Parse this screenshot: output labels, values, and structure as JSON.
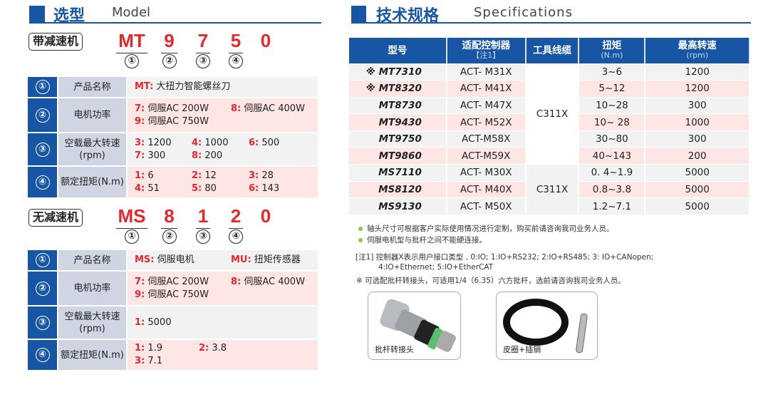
{
  "model": {
    "title": "选型",
    "subtitle": "Model",
    "geared": {
      "tag": "带减速机",
      "code": [
        "MT",
        "9",
        "7",
        "5",
        "0"
      ],
      "markers": [
        "①",
        "②",
        "③",
        "④"
      ],
      "rows": [
        {
          "num": "①",
          "label": "产品名称",
          "options": [
            {
              "k": "MT:",
              "v": " 大扭力智能螺丝刀"
            }
          ]
        },
        {
          "num": "②",
          "label": "电机功率",
          "options": [
            {
              "k": "7:",
              "v": " 伺服AC 200W"
            },
            {
              "k": "8:",
              "v": " 伺服AC 400W"
            },
            {
              "k": "9:",
              "v": " 伺服AC 750W"
            }
          ]
        },
        {
          "num": "③",
          "label": "空载最大转速(rpm)",
          "options": [
            {
              "k": "3:",
              "v": " 1200"
            },
            {
              "k": "4:",
              "v": " 1000"
            },
            {
              "k": "6:",
              "v": " 500"
            },
            {
              "k": "7:",
              "v": " 300"
            },
            {
              "k": "8:",
              "v": " 200"
            }
          ]
        },
        {
          "num": "④",
          "label": "额定扭矩(N.m)",
          "options": [
            {
              "k": "1:",
              "v": " 6"
            },
            {
              "k": "2:",
              "v": " 12"
            },
            {
              "k": "3:",
              "v": " 28"
            },
            {
              "k": "4:",
              "v": " 51"
            },
            {
              "k": "5:",
              "v": " 80"
            },
            {
              "k": "6:",
              "v": " 143"
            }
          ]
        }
      ]
    },
    "direct": {
      "tag": "无减速机",
      "code": [
        "MS",
        "8",
        "1",
        "2",
        "0"
      ],
      "markers": [
        "①",
        "②",
        "③",
        "④"
      ],
      "rows": [
        {
          "num": "①",
          "label": "产品名称",
          "options": [
            {
              "k": "MS:",
              "v": " 伺服电机"
            },
            {
              "k": "MU:",
              "v": " 扭矩传感器"
            }
          ]
        },
        {
          "num": "②",
          "label": "电机功率",
          "options": [
            {
              "k": "7:",
              "v": " 伺服AC 200W"
            },
            {
              "k": "8:",
              "v": " 伺服AC 400W"
            },
            {
              "k": "9:",
              "v": " 伺服AC 750W"
            }
          ]
        },
        {
          "num": "③",
          "label": "空载最大转速(rpm)",
          "options": [
            {
              "k": "1:",
              "v": " 5000"
            }
          ]
        },
        {
          "num": "④",
          "label": "额定扭矩(N.m)",
          "options": [
            {
              "k": "1:",
              "v": " 1.9"
            },
            {
              "k": "2:",
              "v": " 3.8"
            },
            {
              "k": "3:",
              "v": " 7.1"
            }
          ]
        }
      ]
    }
  },
  "specs": {
    "title": "技术规格",
    "subtitle": "Specifications",
    "headers": [
      {
        "t": "型号",
        "s": ""
      },
      {
        "t": "适配控制器",
        "s": "【注1】"
      },
      {
        "t": "工具线缆",
        "s": ""
      },
      {
        "t": "扭矩",
        "s": "(N.m)"
      },
      {
        "t": "最高转速",
        "s": "(rpm)"
      }
    ],
    "rows": [
      [
        "※ MT7310",
        "ACT- M31X",
        "3~6",
        "1200"
      ],
      [
        "※ MT8320",
        "ACT- M41X",
        "5~12",
        "1200"
      ],
      [
        "MT8730",
        "ACT- M47X",
        "10~28",
        "300"
      ],
      [
        "MT9430",
        "ACT- M52X",
        "10~ 28",
        "1000"
      ],
      [
        "MT9750",
        "ACT-M58X",
        "30~80",
        "300"
      ],
      [
        "MT9860",
        "ACT-M59X",
        "40~143",
        "200"
      ],
      [
        "MS7110",
        "ACT- M30X",
        "0. 4~1.9",
        "5000"
      ],
      [
        "MS8120",
        "ACT- M40X",
        "0.8~3.8",
        "5000"
      ],
      [
        "MS9130",
        "ACT- M50X",
        "1.2~7.1",
        "5000"
      ]
    ],
    "cables": [
      "C311X",
      "C311X"
    ],
    "bullets": [
      "轴头尺寸可根据客户实际使用情况进行定制，购买前请咨询我司业务人员。",
      "伺服电机型与批杆之间不能硬连接。"
    ],
    "note1_line1": "[注1]  控制器X表示用户接口类型 , 0:IO;  1:IO+RS232;   2:IO+RS485;  3: IO+CANopen;",
    "note1_line2": "4:IO+Ethernet;  5:IO+EtherCAT",
    "note2": "※ 可选配批杆转接头，可适用1/4（6.35）六方批杆，选前请咨询我司业务人员。",
    "accessories": [
      {
        "label": "批杆转接头"
      },
      {
        "label": "皮圈+插销"
      }
    ]
  },
  "colors": {
    "brand": "#1656a5",
    "accent": "#e8262d",
    "pink": "#fde6e4",
    "gray": "#f2f2f2",
    "bullet": "#8cc63f"
  }
}
